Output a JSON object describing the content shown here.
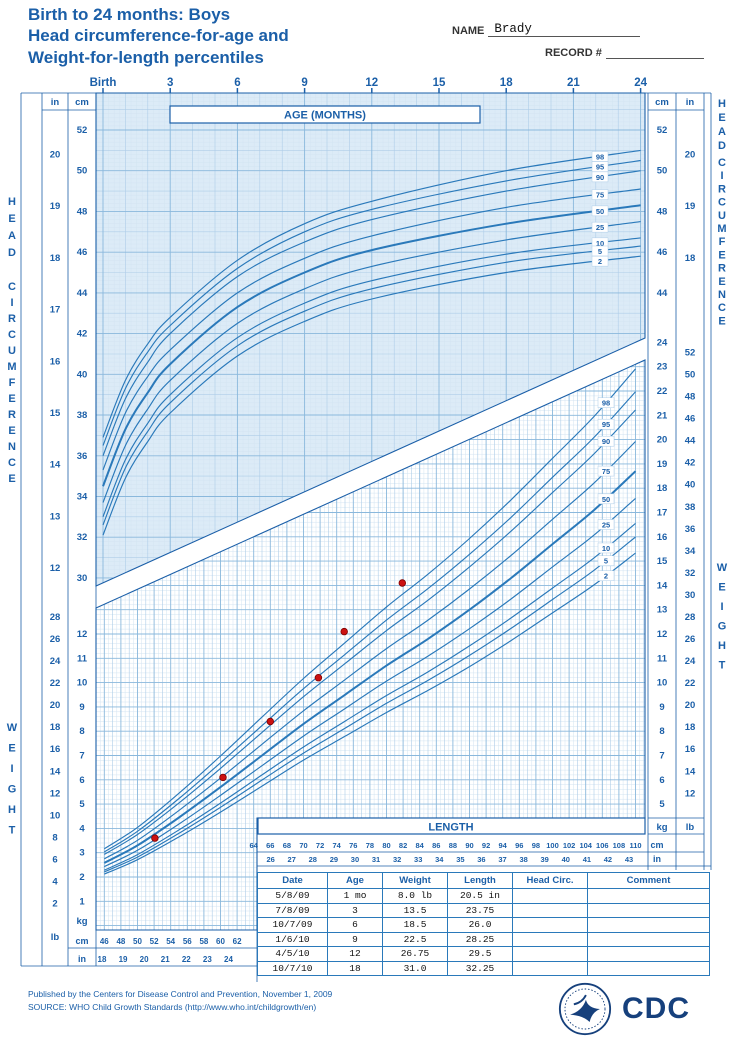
{
  "colors": {
    "accent": "#1b5fa8",
    "curve": "#2a79ba",
    "grid_minor": "#d3e4f2",
    "grid_mid": "#aecde8",
    "grid_major": "#8ab8dc",
    "head_area_fill": "#dcebf7",
    "point_red": "#cc1111"
  },
  "header": {
    "title_lines": [
      "Birth to 24 months: Boys",
      "Head circumference-for-age and",
      "Weight-for-length percentiles"
    ],
    "name_label": "NAME",
    "name_value": "Brady",
    "record_label": "RECORD #",
    "record_value": ""
  },
  "side_titles": {
    "head": "HEAD CIRCUMFERENCE",
    "weight": "WEIGHT"
  },
  "age_axis": {
    "title": "AGE (MONTHS)",
    "tick_labels": [
      "Birth",
      "3",
      "6",
      "9",
      "12",
      "15",
      "18",
      "21",
      "24"
    ],
    "tick_months": [
      0,
      3,
      6,
      9,
      12,
      15,
      18,
      21,
      24
    ]
  },
  "length_axis": {
    "title": "LENGTH",
    "cm_upper": [
      64,
      66,
      68,
      70,
      72,
      74,
      76,
      78,
      80,
      82,
      84,
      86,
      88,
      90,
      92,
      94,
      96,
      98,
      100,
      102,
      104,
      106,
      108,
      110
    ],
    "in_upper": [
      26,
      27,
      28,
      29,
      30,
      31,
      32,
      33,
      34,
      35,
      36,
      37,
      38,
      39,
      40,
      41,
      42,
      43
    ],
    "cm_lower": [
      46,
      48,
      50,
      52,
      54,
      56,
      58,
      60,
      62
    ],
    "in_lower": [
      18,
      19,
      20,
      21,
      22,
      23,
      24
    ],
    "unit_cm": "cm",
    "unit_in": "in"
  },
  "head_axis": {
    "cm_ticks": [
      52,
      50,
      48,
      46,
      44,
      42,
      40,
      38,
      36,
      34,
      32,
      30
    ],
    "in_ticks": [
      20,
      19,
      18,
      17,
      16,
      15,
      14,
      13,
      12
    ],
    "right_cm_ticks": [
      52,
      50,
      48,
      46,
      44
    ],
    "right_in_ticks": [
      20,
      19,
      18
    ],
    "unit_cm": "cm",
    "unit_in": "in"
  },
  "weight_axis": {
    "left_lb_ticks": [
      28,
      26,
      24,
      22,
      20,
      18,
      16,
      14,
      12,
      10,
      8,
      6,
      4,
      2
    ],
    "left_kg_ticks": [
      12,
      11,
      10,
      9,
      8,
      7,
      6,
      5,
      4,
      3,
      2,
      1
    ],
    "right_kg_ticks": [
      24,
      23,
      22,
      21,
      20,
      19,
      18,
      17,
      16,
      15,
      14,
      13,
      12,
      11,
      10,
      9,
      8,
      7,
      6,
      5
    ],
    "right_lb_ticks": [
      52,
      50,
      48,
      46,
      44,
      42,
      40,
      38,
      36,
      34,
      32,
      30,
      28,
      26,
      24,
      22,
      20,
      18,
      16,
      14,
      12
    ],
    "unit_kg": "kg",
    "unit_lb": "lb"
  },
  "percentile_curve_labels": [
    "98",
    "95",
    "90",
    "75",
    "50",
    "25",
    "10",
    "5",
    "2"
  ],
  "chart_data": [
    {
      "type": "line",
      "title": "Head circumference-for-age, boys",
      "x_unit": "months",
      "y_unit": "cm",
      "xlim": [
        0,
        24
      ],
      "ylim": [
        30,
        53
      ],
      "x": [
        0,
        1,
        2,
        3,
        6,
        9,
        12,
        18,
        24
      ],
      "series": [
        {
          "percentile": 98,
          "values": [
            36.9,
            39.7,
            41.5,
            42.8,
            45.6,
            47.4,
            48.5,
            50.0,
            51.0
          ]
        },
        {
          "percentile": 95,
          "values": [
            36.5,
            39.3,
            41.1,
            42.4,
            45.2,
            47.0,
            48.1,
            49.5,
            50.5
          ]
        },
        {
          "percentile": 90,
          "values": [
            36.0,
            38.8,
            40.6,
            42.0,
            44.8,
            46.5,
            47.6,
            49.0,
            50.0
          ]
        },
        {
          "percentile": 75,
          "values": [
            35.3,
            38.1,
            39.9,
            41.2,
            44.0,
            45.7,
            46.8,
            48.2,
            49.1
          ]
        },
        {
          "percentile": 50,
          "values": [
            34.5,
            37.3,
            39.1,
            40.5,
            43.3,
            45.0,
            46.1,
            47.4,
            48.3
          ]
        },
        {
          "percentile": 25,
          "values": [
            33.7,
            36.5,
            38.3,
            39.7,
            42.5,
            44.2,
            45.3,
            46.6,
            47.5
          ]
        },
        {
          "percentile": 10,
          "values": [
            33.0,
            35.8,
            37.6,
            39.0,
            41.8,
            43.5,
            44.6,
            45.9,
            46.7
          ]
        },
        {
          "percentile": 5,
          "values": [
            32.6,
            35.4,
            37.2,
            38.6,
            41.4,
            43.1,
            44.2,
            45.5,
            46.3
          ]
        },
        {
          "percentile": 2,
          "values": [
            32.1,
            34.9,
            36.7,
            38.1,
            40.9,
            42.6,
            43.7,
            45.0,
            45.8
          ]
        }
      ]
    },
    {
      "type": "line",
      "title": "Weight-for-length, boys",
      "x_unit": "cm",
      "y_unit": "kg",
      "xlim": [
        45,
        110
      ],
      "ylim": [
        1,
        24
      ],
      "x": [
        46,
        50,
        55,
        60,
        65,
        70,
        75,
        80,
        85,
        90,
        95,
        100,
        105,
        110
      ],
      "series": [
        {
          "percentile": 98,
          "values": [
            3.16,
            4.04,
            5.45,
            6.98,
            8.58,
            10.17,
            11.64,
            13.11,
            14.46,
            15.93,
            17.52,
            19.23,
            20.95,
            22.91
          ]
        },
        {
          "percentile": 95,
          "values": [
            3.03,
            3.88,
            5.23,
            6.7,
            8.23,
            9.75,
            11.16,
            12.57,
            13.87,
            15.28,
            16.8,
            18.45,
            20.09,
            21.97
          ]
        },
        {
          "percentile": 90,
          "values": [
            2.93,
            3.75,
            5.05,
            6.47,
            7.95,
            9.42,
            10.78,
            12.14,
            13.39,
            14.76,
            16.23,
            17.82,
            19.41,
            21.22
          ]
        },
        {
          "percentile": 75,
          "values": [
            2.75,
            3.51,
            4.74,
            6.07,
            7.46,
            8.84,
            10.12,
            11.4,
            12.57,
            13.85,
            15.23,
            16.72,
            18.21,
            19.92
          ]
        },
        {
          "percentile": 50,
          "values": [
            2.58,
            3.3,
            4.45,
            5.7,
            7.0,
            8.3,
            9.5,
            10.7,
            11.8,
            13.0,
            14.3,
            15.7,
            17.1,
            18.7
          ]
        },
        {
          "percentile": 25,
          "values": [
            2.43,
            3.1,
            4.18,
            5.36,
            6.58,
            7.8,
            8.93,
            10.06,
            11.09,
            12.22,
            13.44,
            14.76,
            16.07,
            17.58
          ]
        },
        {
          "percentile": 10,
          "values": [
            2.28,
            2.92,
            3.94,
            5.04,
            6.2,
            7.35,
            8.41,
            9.47,
            10.44,
            11.51,
            12.66,
            13.89,
            15.13,
            16.55
          ]
        },
        {
          "percentile": 5,
          "values": [
            2.21,
            2.82,
            3.8,
            4.87,
            5.99,
            7.1,
            8.12,
            9.15,
            10.09,
            11.12,
            12.23,
            13.42,
            14.62,
            15.99
          ]
        },
        {
          "percentile": 2,
          "values": [
            2.12,
            2.71,
            3.65,
            4.67,
            5.74,
            6.81,
            7.79,
            8.77,
            9.68,
            10.66,
            11.73,
            12.87,
            14.02,
            15.33
          ]
        }
      ],
      "patient_points": [
        {
          "length_cm": 52.1,
          "weight_kg": 3.6
        },
        {
          "length_cm": 60.3,
          "weight_kg": 6.1
        },
        {
          "length_cm": 66.0,
          "weight_kg": 8.4
        },
        {
          "length_cm": 71.8,
          "weight_kg": 10.2
        },
        {
          "length_cm": 74.9,
          "weight_kg": 12.1
        },
        {
          "length_cm": 81.9,
          "weight_kg": 14.1
        }
      ]
    }
  ],
  "table": {
    "headers": [
      "Date",
      "Age",
      "Weight",
      "Length",
      "Head Circ.",
      "Comment"
    ],
    "rows": [
      [
        "5/8/09",
        "1 mo",
        "8.0 lb",
        "20.5 in",
        "",
        ""
      ],
      [
        "7/8/09",
        "3",
        "13.5",
        "23.75",
        "",
        ""
      ],
      [
        "10/7/09",
        "6",
        "18.5",
        "26.0",
        "",
        ""
      ],
      [
        "1/6/10",
        "9",
        "22.5",
        "28.25",
        "",
        ""
      ],
      [
        "4/5/10",
        "12",
        "26.75",
        "29.5",
        "",
        ""
      ],
      [
        "10/7/10",
        "18",
        "31.0",
        "32.25",
        "",
        ""
      ]
    ]
  },
  "footer": {
    "line1": "Published by the Centers for Disease Control and Prevention, November 1, 2009",
    "line2": "SOURCE: WHO Child Growth Standards (http://www.who.int/childgrowth/en)"
  },
  "logos": {
    "cdc": "CDC"
  }
}
